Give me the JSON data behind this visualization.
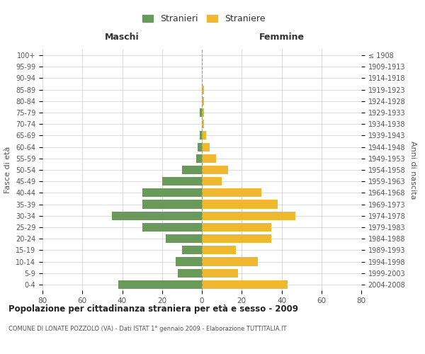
{
  "age_groups": [
    "100+",
    "95-99",
    "90-94",
    "85-89",
    "80-84",
    "75-79",
    "70-74",
    "65-69",
    "60-64",
    "55-59",
    "50-54",
    "45-49",
    "40-44",
    "35-39",
    "30-34",
    "25-29",
    "20-24",
    "15-19",
    "10-14",
    "5-9",
    "0-4"
  ],
  "birth_years": [
    "≤ 1908",
    "1909-1913",
    "1914-1918",
    "1919-1923",
    "1924-1928",
    "1929-1933",
    "1934-1938",
    "1939-1943",
    "1944-1948",
    "1949-1953",
    "1954-1958",
    "1959-1963",
    "1964-1968",
    "1969-1973",
    "1974-1978",
    "1979-1983",
    "1984-1988",
    "1989-1993",
    "1994-1998",
    "1999-2003",
    "2004-2008"
  ],
  "maschi": [
    0,
    0,
    0,
    0,
    0,
    1,
    0,
    1,
    2,
    3,
    10,
    20,
    30,
    30,
    45,
    30,
    18,
    10,
    13,
    12,
    42
  ],
  "femmine": [
    0,
    0,
    0,
    1,
    1,
    1,
    1,
    2,
    4,
    7,
    13,
    10,
    30,
    38,
    47,
    35,
    35,
    17,
    28,
    18,
    43
  ],
  "male_color": "#6a9a5a",
  "female_color": "#f0b830",
  "title": "Popolazione per cittadinanza straniera per età e sesso - 2009",
  "subtitle": "COMUNE DI LONATE POZZOLO (VA) - Dati ISTAT 1° gennaio 2009 - Elaborazione TUTTITALIA.IT",
  "xlabel_left": "Maschi",
  "xlabel_right": "Femmine",
  "ylabel_left": "Fasce di età",
  "ylabel_right": "Anni di nascita",
  "legend_male": "Stranieri",
  "legend_female": "Straniere",
  "xlim": 80,
  "background_color": "#ffffff",
  "grid_color": "#cccccc"
}
